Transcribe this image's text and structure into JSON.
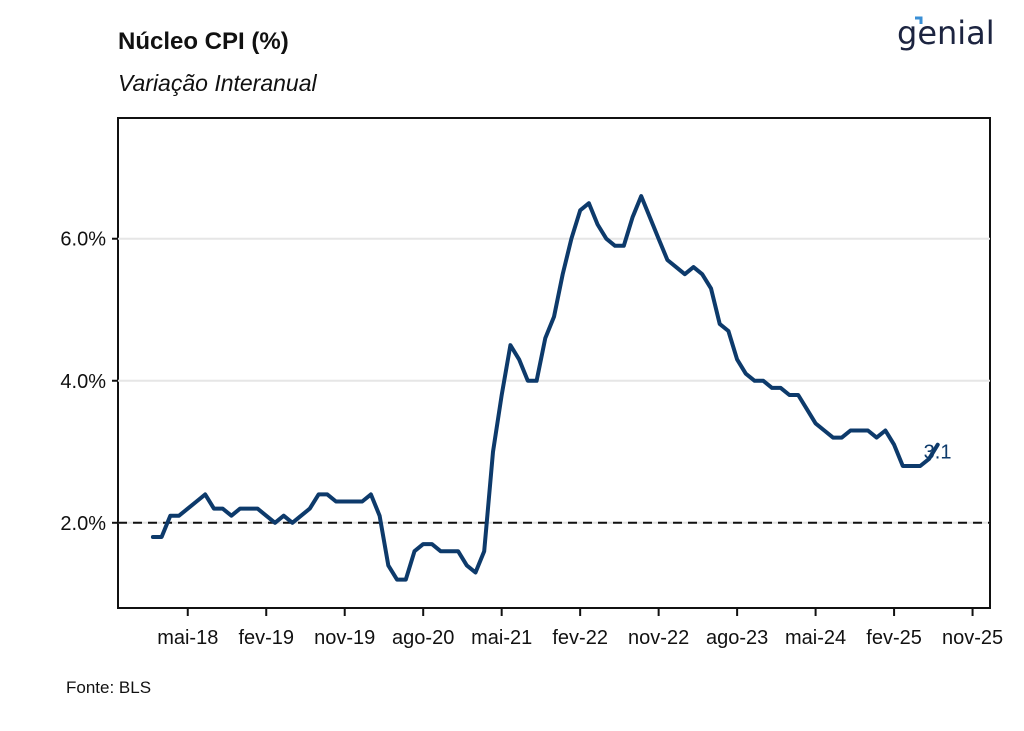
{
  "header": {
    "title": "Núcleo CPI (%)",
    "subtitle": "Variação Interanual",
    "logo_text": "genial"
  },
  "footer": {
    "source": "Fonte: BLS"
  },
  "colors": {
    "line": "#0d3a6b",
    "axis": "#111111",
    "grid": "#e6e6e6",
    "reference": "#111111"
  },
  "chart_data": {
    "type": "line",
    "title": "Núcleo CPI (%)",
    "subtitle": "Variação Interanual",
    "xlabel": "",
    "ylabel": "",
    "ylim": [
      0.8,
      7.7
    ],
    "yticks": [
      2.0,
      4.0,
      6.0
    ],
    "ytick_labels": [
      "2.0%",
      "4.0%",
      "6.0%"
    ],
    "xticks": [
      "2018-05",
      "2019-02",
      "2019-11",
      "2020-08",
      "2021-05",
      "2022-02",
      "2022-11",
      "2023-08",
      "2024-05",
      "2025-02",
      "2025-11"
    ],
    "xtick_labels": [
      "mai-18",
      "fev-19",
      "nov-19",
      "ago-20",
      "mai-21",
      "fev-22",
      "nov-22",
      "ago-23",
      "mai-24",
      "fev-25",
      "nov-25"
    ],
    "xlim": [
      "2017-09",
      "2026-01"
    ],
    "grid": "horizontal",
    "reference_line": {
      "y": 2.0,
      "style": "dashed"
    },
    "end_label": "3.1",
    "series": [
      {
        "x": [
          "2018-01",
          "2018-02",
          "2018-03",
          "2018-04",
          "2018-05",
          "2018-06",
          "2018-07",
          "2018-08",
          "2018-09",
          "2018-10",
          "2018-11",
          "2018-12",
          "2019-01",
          "2019-02",
          "2019-03",
          "2019-04",
          "2019-05",
          "2019-06",
          "2019-07",
          "2019-08",
          "2019-09",
          "2019-10",
          "2019-11",
          "2019-12",
          "2020-01",
          "2020-02",
          "2020-03",
          "2020-04",
          "2020-05",
          "2020-06",
          "2020-07",
          "2020-08",
          "2020-09",
          "2020-10",
          "2020-11",
          "2020-12",
          "2021-01",
          "2021-02",
          "2021-03",
          "2021-04",
          "2021-05",
          "2021-06",
          "2021-07",
          "2021-08",
          "2021-09",
          "2021-10",
          "2021-11",
          "2021-12",
          "2022-01",
          "2022-02",
          "2022-03",
          "2022-04",
          "2022-05",
          "2022-06",
          "2022-07",
          "2022-08",
          "2022-09",
          "2022-10",
          "2022-11",
          "2022-12",
          "2023-01",
          "2023-02",
          "2023-03",
          "2023-04",
          "2023-05",
          "2023-06",
          "2023-07",
          "2023-08",
          "2023-09",
          "2023-10",
          "2023-11",
          "2023-12",
          "2024-01",
          "2024-02",
          "2024-03",
          "2024-04",
          "2024-05",
          "2024-06",
          "2024-07",
          "2024-08",
          "2024-09",
          "2024-10",
          "2024-11",
          "2024-12",
          "2025-01",
          "2025-02",
          "2025-03",
          "2025-04",
          "2025-05",
          "2025-06",
          "2025-07"
        ],
        "values": [
          1.8,
          1.8,
          2.1,
          2.1,
          2.2,
          2.3,
          2.4,
          2.2,
          2.2,
          2.1,
          2.2,
          2.2,
          2.2,
          2.1,
          2.0,
          2.1,
          2.0,
          2.1,
          2.2,
          2.4,
          2.4,
          2.3,
          2.3,
          2.3,
          2.3,
          2.4,
          2.1,
          1.4,
          1.2,
          1.2,
          1.6,
          1.7,
          1.7,
          1.6,
          1.6,
          1.6,
          1.4,
          1.3,
          1.6,
          3.0,
          3.8,
          4.5,
          4.3,
          4.0,
          4.0,
          4.6,
          4.9,
          5.5,
          6.0,
          6.4,
          6.5,
          6.2,
          6.0,
          5.9,
          5.9,
          6.3,
          6.6,
          6.3,
          6.0,
          5.7,
          5.6,
          5.5,
          5.6,
          5.5,
          5.3,
          4.8,
          4.7,
          4.3,
          4.1,
          4.0,
          4.0,
          3.9,
          3.9,
          3.8,
          3.8,
          3.6,
          3.4,
          3.3,
          3.2,
          3.2,
          3.3,
          3.3,
          3.3,
          3.2,
          3.3,
          3.1,
          2.8,
          2.8,
          2.8,
          2.9,
          3.1
        ]
      }
    ]
  }
}
